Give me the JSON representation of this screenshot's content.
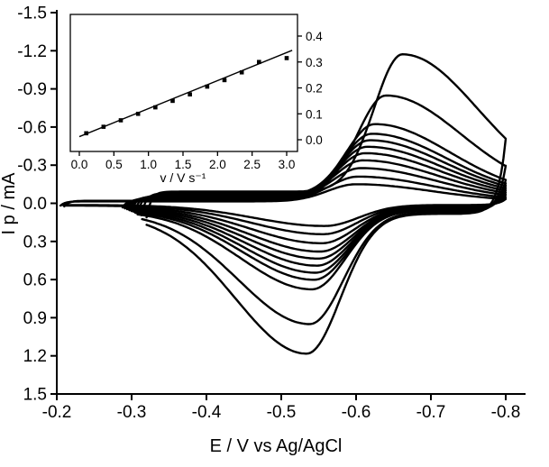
{
  "figure": {
    "background": "#ffffff",
    "line_color": "#000000"
  },
  "chart_data": [
    {
      "id": "main",
      "type": "line",
      "kind": "cyclic-voltammogram",
      "title": "",
      "xlabel": "E / V vs Ag/AgCl",
      "ylabel": "I p / mA",
      "xlim": [
        -0.2,
        -0.8
      ],
      "ylim": [
        -1.5,
        1.5
      ],
      "x_ticks": [
        "-0.2",
        "-0.3",
        "-0.4",
        "-0.5",
        "-0.6",
        "-0.7",
        "-0.8"
      ],
      "y_ticks": [
        "-1.5",
        "-1.2",
        "-0.9",
        "-0.6",
        "-0.3",
        "0.0",
        "0.3",
        "0.6",
        "0.9",
        "1.2",
        "1.5"
      ],
      "grid": false,
      "legend": null,
      "curve_shape": {
        "w_c_rise": 0.038,
        "w_c_tail": 0.1,
        "w_a_rise": 0.045,
        "w_a_tail": 0.095,
        "e_switch": -0.8
      },
      "curves": [
        {
          "scan_rate": 0.1,
          "ipc": 0.135,
          "ipa": 0.165,
          "epc": -0.6,
          "epa": -0.558,
          "base": 0.015,
          "e_start": -0.205
        },
        {
          "scan_rate": 0.25,
          "ipc": 0.19,
          "ipa": 0.225,
          "epc": -0.603,
          "epa": -0.556,
          "base": 0.02,
          "e_start": -0.21
        },
        {
          "scan_rate": 0.5,
          "ipc": 0.25,
          "ipa": 0.29,
          "epc": -0.606,
          "epa": -0.554,
          "base": 0.027,
          "e_start": -0.288
        },
        {
          "scan_rate": 0.75,
          "ipc": 0.305,
          "ipa": 0.35,
          "epc": -0.609,
          "epa": -0.552,
          "base": 0.033,
          "e_start": -0.291
        },
        {
          "scan_rate": 1.0,
          "ipc": 0.355,
          "ipa": 0.4,
          "epc": -0.612,
          "epa": -0.55,
          "base": 0.039,
          "e_start": -0.294
        },
        {
          "scan_rate": 1.25,
          "ipc": 0.4,
          "ipa": 0.45,
          "epc": -0.615,
          "epa": -0.548,
          "base": 0.045,
          "e_start": -0.297
        },
        {
          "scan_rate": 1.5,
          "ipc": 0.445,
          "ipa": 0.5,
          "epc": -0.618,
          "epa": -0.546,
          "base": 0.051,
          "e_start": -0.3
        },
        {
          "scan_rate": 1.75,
          "ipc": 0.49,
          "ipa": 0.55,
          "epc": -0.621,
          "epa": -0.544,
          "base": 0.057,
          "e_start": -0.304
        },
        {
          "scan_rate": 2.0,
          "ipc": 0.56,
          "ipa": 0.62,
          "epc": -0.625,
          "epa": -0.541,
          "base": 0.063,
          "e_start": -0.308
        },
        {
          "scan_rate": 2.5,
          "ipc": 0.77,
          "ipa": 0.88,
          "epc": -0.64,
          "epa": -0.538,
          "base": 0.078,
          "e_start": -0.313
        },
        {
          "scan_rate": 3.0,
          "ipc": 1.08,
          "ipa": 1.1,
          "epc": -0.662,
          "epa": -0.534,
          "base": 0.092,
          "e_start": -0.32
        }
      ]
    },
    {
      "id": "inset",
      "type": "scatter",
      "title": "",
      "xlabel": "v / V s⁻¹",
      "ylabel": "",
      "xlim": [
        0,
        3
      ],
      "ylim": [
        0,
        0.4
      ],
      "x_ticks": [
        "0.0",
        "0.5",
        "1.0",
        "1.5",
        "2.0",
        "2.5",
        "3.0"
      ],
      "y_ticks": [
        "0.0",
        "0.1",
        "0.2",
        "0.3",
        "0.4"
      ],
      "grid": false,
      "legend": null,
      "points": [
        [
          0.1,
          0.025
        ],
        [
          0.35,
          0.05
        ],
        [
          0.6,
          0.075
        ],
        [
          0.85,
          0.1
        ],
        [
          1.1,
          0.125
        ],
        [
          1.35,
          0.15
        ],
        [
          1.6,
          0.175
        ],
        [
          1.85,
          0.205
        ],
        [
          2.1,
          0.23
        ],
        [
          2.35,
          0.26
        ],
        [
          2.6,
          0.3
        ],
        [
          3.0,
          0.315
        ]
      ],
      "fit_line": [
        [
          0.0,
          0.012
        ],
        [
          3.08,
          0.345
        ]
      ]
    }
  ]
}
